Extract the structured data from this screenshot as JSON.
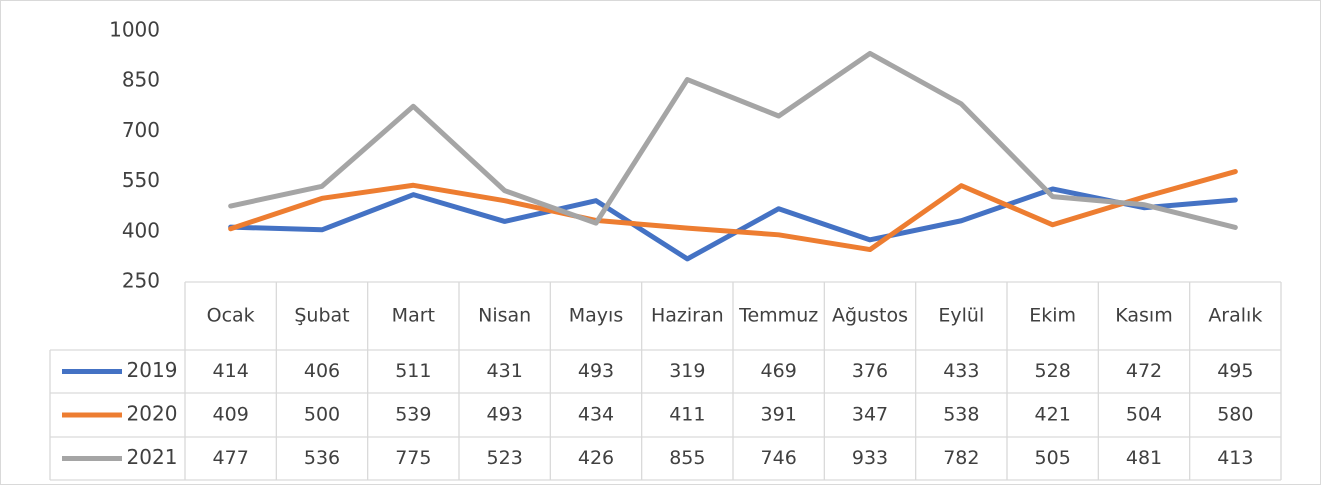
{
  "chart_data": {
    "type": "line",
    "categories": [
      "Ocak",
      "Şubat",
      "Mart",
      "Nisan",
      "Mayıs",
      "Haziran",
      "Temmuz",
      "Ağustos",
      "Eylül",
      "Ekim",
      "Kasım",
      "Aralık"
    ],
    "series": [
      {
        "name": "2019",
        "color": "#4472c4",
        "values": [
          414,
          406,
          511,
          431,
          493,
          319,
          469,
          376,
          433,
          528,
          472,
          495
        ]
      },
      {
        "name": "2020",
        "color": "#ed7d31",
        "values": [
          409,
          500,
          539,
          493,
          434,
          411,
          391,
          347,
          538,
          421,
          504,
          580
        ]
      },
      {
        "name": "2021",
        "color": "#a5a5a5",
        "values": [
          477,
          536,
          775,
          523,
          426,
          855,
          746,
          933,
          782,
          505,
          481,
          413
        ]
      }
    ],
    "ylim": [
      250,
      1000
    ],
    "yticks": [
      250,
      400,
      550,
      700,
      850,
      1000
    ],
    "grid": false
  }
}
